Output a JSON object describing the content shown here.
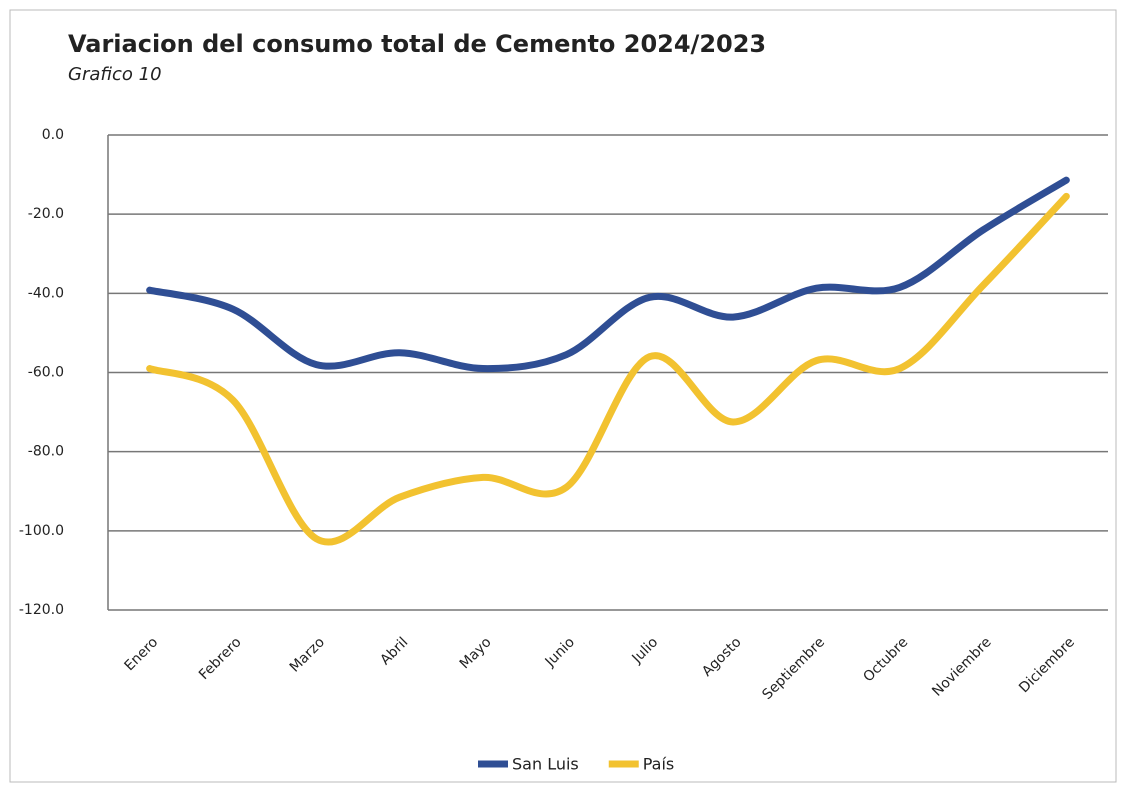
{
  "chart_data": {
    "type": "line",
    "title": "Variacion del consumo total  de Cemento 2024/2023",
    "subtitle": "Grafico 10",
    "categories": [
      "Enero",
      "Febrero",
      "Marzo",
      "Abril",
      "Mayo",
      "Junio",
      "Julio",
      "Agosto",
      "Septiembre",
      "Octubre",
      "Noviembre",
      "Diciembre"
    ],
    "series": [
      {
        "name": "San Luis",
        "color": "#2f4e94",
        "values": [
          -39.2,
          -44,
          -58,
          -55,
          -59,
          -55.5,
          -41,
          -46,
          -38.7,
          -38.5,
          -24,
          -11.4
        ]
      },
      {
        "name": "País",
        "color": "#f2c230",
        "values": [
          -59,
          -67,
          -102,
          -91.5,
          -86.5,
          -89,
          -56,
          -72.5,
          -57,
          -59,
          -38,
          -15.5
        ]
      }
    ],
    "ylim": [
      -120,
      0
    ],
    "yticks": [
      {
        "value": 0,
        "label": "0.0"
      },
      {
        "value": -20,
        "label": "-20.0"
      },
      {
        "value": -40,
        "label": "-40.0"
      },
      {
        "value": -60,
        "label": "-60.0"
      },
      {
        "value": -80,
        "label": "-80.0"
      },
      {
        "value": -100,
        "label": "-100.0"
      },
      {
        "value": -120,
        "label": "-120.0"
      }
    ],
    "grid": true,
    "legend": "bottom"
  }
}
